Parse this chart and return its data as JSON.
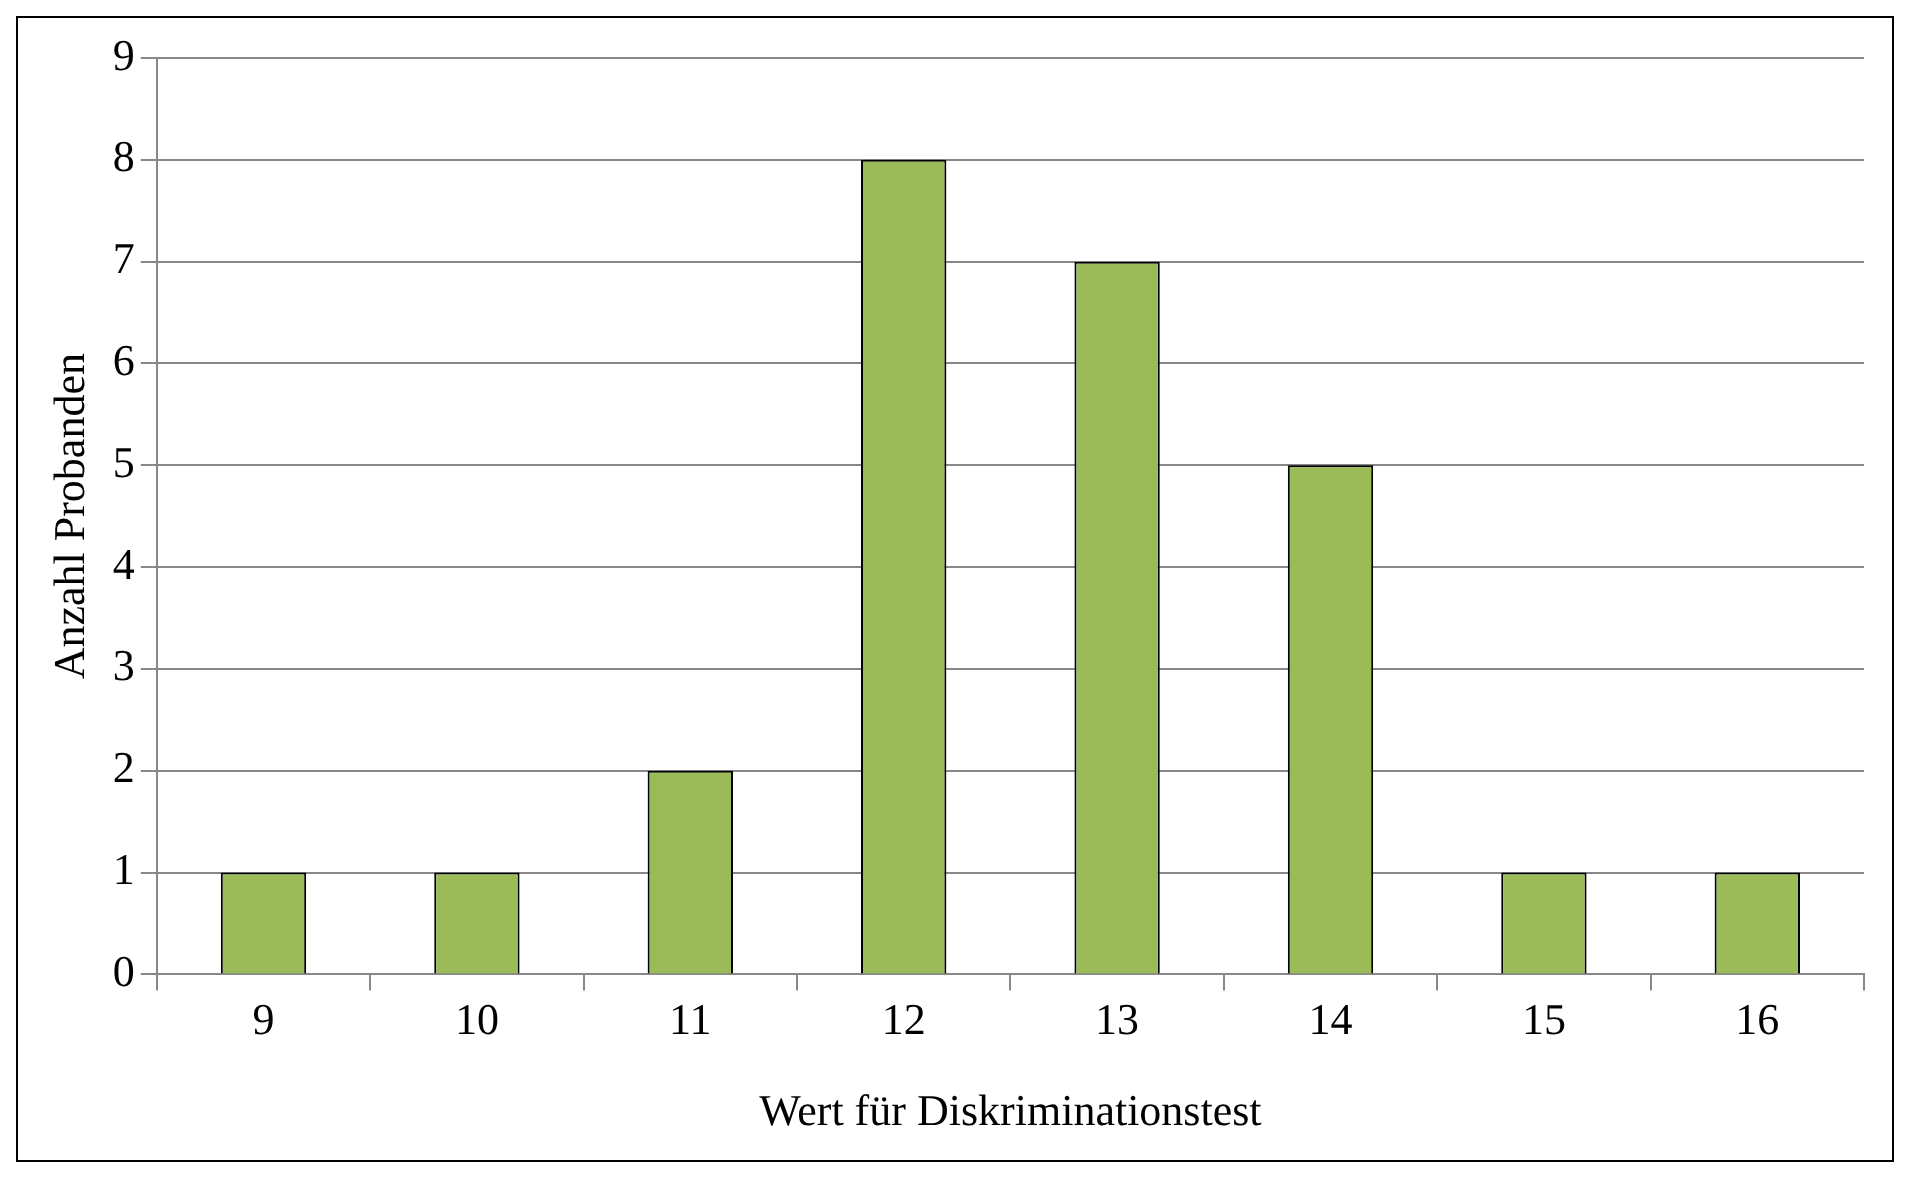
{
  "chart_data": {
    "type": "bar",
    "xlabel": "Wert für Diskriminationstest",
    "ylabel": "Anzahl Probanden",
    "categories": [
      "9",
      "10",
      "11",
      "12",
      "13",
      "14",
      "15",
      "16"
    ],
    "values": [
      1,
      1,
      2,
      8,
      7,
      5,
      1,
      1
    ],
    "color": "#9bbb59",
    "ylim": [
      0,
      9
    ],
    "yticks": [
      0,
      1,
      2,
      3,
      4,
      5,
      6,
      7,
      8,
      9
    ],
    "grid": "y",
    "legend": false
  }
}
